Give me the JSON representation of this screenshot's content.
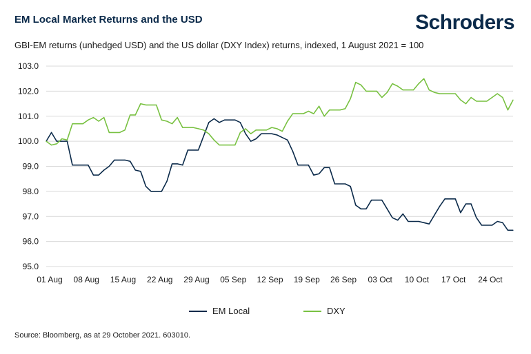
{
  "header": {
    "title": "EM Local Market Returns and the USD",
    "subtitle": "GBI-EM returns (unhedged USD) and the US dollar (DXY Index) returns, indexed, 1 August 2021 = 100",
    "logo": "Schroders"
  },
  "footer": {
    "source": "Source: Bloomberg, as at 29 October 2021. 603010."
  },
  "colors": {
    "em_local": "#0b2a4a",
    "dxy": "#79c142",
    "grid": "#d9d9d9"
  },
  "chart_data": {
    "type": "line",
    "title": "EM Local Market Returns and the USD",
    "subtitle": "GBI-EM returns (unhedged USD) and the US dollar (DXY Index) returns, indexed, 1 August 2021 = 100",
    "x_start": "2021-08-01",
    "x_end": "2021-10-29",
    "x_tick_dates": [
      "2021-08-01",
      "2021-08-08",
      "2021-08-15",
      "2021-08-22",
      "2021-08-29",
      "2021-09-05",
      "2021-09-12",
      "2021-09-19",
      "2021-09-26",
      "2021-10-03",
      "2021-10-10",
      "2021-10-17",
      "2021-10-24"
    ],
    "x_tick_labels": [
      "01 Aug",
      "08 Aug",
      "15 Aug",
      "22 Aug",
      "29 Aug",
      "05 Sep",
      "12 Sep",
      "19 Sep",
      "26 Sep",
      "03 Oct",
      "10 Oct",
      "17 Oct",
      "24 Oct"
    ],
    "y_ticks": [
      "95.0",
      "96.0",
      "97.0",
      "98.0",
      "99.0",
      "100.0",
      "101.0",
      "102.0",
      "103.0"
    ],
    "ylim": [
      95,
      103
    ],
    "grid": "horizontal",
    "legend_position": "bottom",
    "series": [
      {
        "name": "EM Local",
        "color": "#0b2a4a",
        "points": [
          [
            "2021-08-01",
            100.0
          ],
          [
            "2021-08-02",
            100.35
          ],
          [
            "2021-08-03",
            100.0
          ],
          [
            "2021-08-04",
            100.0
          ],
          [
            "2021-08-05",
            100.0
          ],
          [
            "2021-08-06",
            99.05
          ],
          [
            "2021-08-08",
            99.05
          ],
          [
            "2021-08-09",
            99.05
          ],
          [
            "2021-08-10",
            98.65
          ],
          [
            "2021-08-11",
            98.65
          ],
          [
            "2021-08-12",
            98.85
          ],
          [
            "2021-08-13",
            99.0
          ],
          [
            "2021-08-14",
            99.25
          ],
          [
            "2021-08-16",
            99.25
          ],
          [
            "2021-08-17",
            99.2
          ],
          [
            "2021-08-18",
            98.85
          ],
          [
            "2021-08-19",
            98.8
          ],
          [
            "2021-08-20",
            98.2
          ],
          [
            "2021-08-21",
            98.0
          ],
          [
            "2021-08-23",
            98.0
          ],
          [
            "2021-08-24",
            98.4
          ],
          [
            "2021-08-25",
            99.1
          ],
          [
            "2021-08-26",
            99.1
          ],
          [
            "2021-08-27",
            99.05
          ],
          [
            "2021-08-28",
            99.65
          ],
          [
            "2021-08-30",
            99.65
          ],
          [
            "2021-08-31",
            100.2
          ],
          [
            "2021-09-01",
            100.75
          ],
          [
            "2021-09-02",
            100.9
          ],
          [
            "2021-09-03",
            100.75
          ],
          [
            "2021-09-04",
            100.85
          ],
          [
            "2021-09-06",
            100.85
          ],
          [
            "2021-09-07",
            100.75
          ],
          [
            "2021-09-08",
            100.3
          ],
          [
            "2021-09-09",
            100.0
          ],
          [
            "2021-09-10",
            100.1
          ],
          [
            "2021-09-11",
            100.3
          ],
          [
            "2021-09-13",
            100.3
          ],
          [
            "2021-09-14",
            100.25
          ],
          [
            "2021-09-15",
            100.15
          ],
          [
            "2021-09-16",
            100.05
          ],
          [
            "2021-09-17",
            99.6
          ],
          [
            "2021-09-18",
            99.05
          ],
          [
            "2021-09-20",
            99.05
          ],
          [
            "2021-09-21",
            98.65
          ],
          [
            "2021-09-22",
            98.7
          ],
          [
            "2021-09-23",
            98.95
          ],
          [
            "2021-09-24",
            98.95
          ],
          [
            "2021-09-25",
            98.3
          ],
          [
            "2021-09-27",
            98.3
          ],
          [
            "2021-09-28",
            98.2
          ],
          [
            "2021-09-29",
            97.45
          ],
          [
            "2021-09-30",
            97.3
          ],
          [
            "2021-10-01",
            97.3
          ],
          [
            "2021-10-02",
            97.65
          ],
          [
            "2021-10-04",
            97.65
          ],
          [
            "2021-10-05",
            97.3
          ],
          [
            "2021-10-06",
            96.95
          ],
          [
            "2021-10-07",
            96.85
          ],
          [
            "2021-10-08",
            97.1
          ],
          [
            "2021-10-09",
            96.8
          ],
          [
            "2021-10-11",
            96.8
          ],
          [
            "2021-10-12",
            96.75
          ],
          [
            "2021-10-13",
            96.7
          ],
          [
            "2021-10-14",
            97.05
          ],
          [
            "2021-10-15",
            97.4
          ],
          [
            "2021-10-16",
            97.7
          ],
          [
            "2021-10-18",
            97.7
          ],
          [
            "2021-10-19",
            97.15
          ],
          [
            "2021-10-20",
            97.5
          ],
          [
            "2021-10-21",
            97.5
          ],
          [
            "2021-10-22",
            96.95
          ],
          [
            "2021-10-23",
            96.65
          ],
          [
            "2021-10-25",
            96.65
          ],
          [
            "2021-10-26",
            96.8
          ],
          [
            "2021-10-27",
            96.75
          ],
          [
            "2021-10-28",
            96.45
          ],
          [
            "2021-10-29",
            96.45
          ]
        ]
      },
      {
        "name": "DXY",
        "color": "#79c142",
        "points": [
          [
            "2021-08-01",
            100.0
          ],
          [
            "2021-08-02",
            99.85
          ],
          [
            "2021-08-03",
            99.9
          ],
          [
            "2021-08-04",
            100.1
          ],
          [
            "2021-08-05",
            100.05
          ],
          [
            "2021-08-06",
            100.7
          ],
          [
            "2021-08-08",
            100.7
          ],
          [
            "2021-08-09",
            100.85
          ],
          [
            "2021-08-10",
            100.95
          ],
          [
            "2021-08-11",
            100.8
          ],
          [
            "2021-08-12",
            100.95
          ],
          [
            "2021-08-13",
            100.35
          ],
          [
            "2021-08-15",
            100.35
          ],
          [
            "2021-08-16",
            100.45
          ],
          [
            "2021-08-17",
            101.05
          ],
          [
            "2021-08-18",
            101.05
          ],
          [
            "2021-08-19",
            101.5
          ],
          [
            "2021-08-20",
            101.45
          ],
          [
            "2021-08-22",
            101.45
          ],
          [
            "2021-08-23",
            100.85
          ],
          [
            "2021-08-24",
            100.8
          ],
          [
            "2021-08-25",
            100.7
          ],
          [
            "2021-08-26",
            100.95
          ],
          [
            "2021-08-27",
            100.55
          ],
          [
            "2021-08-29",
            100.55
          ],
          [
            "2021-08-30",
            100.5
          ],
          [
            "2021-08-31",
            100.45
          ],
          [
            "2021-09-01",
            100.3
          ],
          [
            "2021-09-02",
            100.05
          ],
          [
            "2021-09-03",
            99.85
          ],
          [
            "2021-09-05",
            99.85
          ],
          [
            "2021-09-06",
            99.85
          ],
          [
            "2021-09-07",
            100.35
          ],
          [
            "2021-09-08",
            100.5
          ],
          [
            "2021-09-09",
            100.3
          ],
          [
            "2021-09-10",
            100.45
          ],
          [
            "2021-09-12",
            100.45
          ],
          [
            "2021-09-13",
            100.55
          ],
          [
            "2021-09-14",
            100.5
          ],
          [
            "2021-09-15",
            100.4
          ],
          [
            "2021-09-16",
            100.8
          ],
          [
            "2021-09-17",
            101.1
          ],
          [
            "2021-09-19",
            101.1
          ],
          [
            "2021-09-20",
            101.2
          ],
          [
            "2021-09-21",
            101.1
          ],
          [
            "2021-09-22",
            101.4
          ],
          [
            "2021-09-23",
            101.0
          ],
          [
            "2021-09-24",
            101.25
          ],
          [
            "2021-09-26",
            101.25
          ],
          [
            "2021-09-27",
            101.3
          ],
          [
            "2021-09-28",
            101.7
          ],
          [
            "2021-09-29",
            102.35
          ],
          [
            "2021-09-30",
            102.25
          ],
          [
            "2021-10-01",
            102.0
          ],
          [
            "2021-10-03",
            102.0
          ],
          [
            "2021-10-04",
            101.75
          ],
          [
            "2021-10-05",
            101.95
          ],
          [
            "2021-10-06",
            102.3
          ],
          [
            "2021-10-07",
            102.2
          ],
          [
            "2021-10-08",
            102.05
          ],
          [
            "2021-10-10",
            102.05
          ],
          [
            "2021-10-11",
            102.3
          ],
          [
            "2021-10-12",
            102.5
          ],
          [
            "2021-10-13",
            102.05
          ],
          [
            "2021-10-14",
            101.95
          ],
          [
            "2021-10-15",
            101.9
          ],
          [
            "2021-10-17",
            101.9
          ],
          [
            "2021-10-18",
            101.9
          ],
          [
            "2021-10-19",
            101.65
          ],
          [
            "2021-10-20",
            101.5
          ],
          [
            "2021-10-21",
            101.75
          ],
          [
            "2021-10-22",
            101.6
          ],
          [
            "2021-10-24",
            101.6
          ],
          [
            "2021-10-25",
            101.75
          ],
          [
            "2021-10-26",
            101.9
          ],
          [
            "2021-10-27",
            101.75
          ],
          [
            "2021-10-28",
            101.25
          ],
          [
            "2021-10-29",
            101.65
          ]
        ]
      }
    ]
  }
}
